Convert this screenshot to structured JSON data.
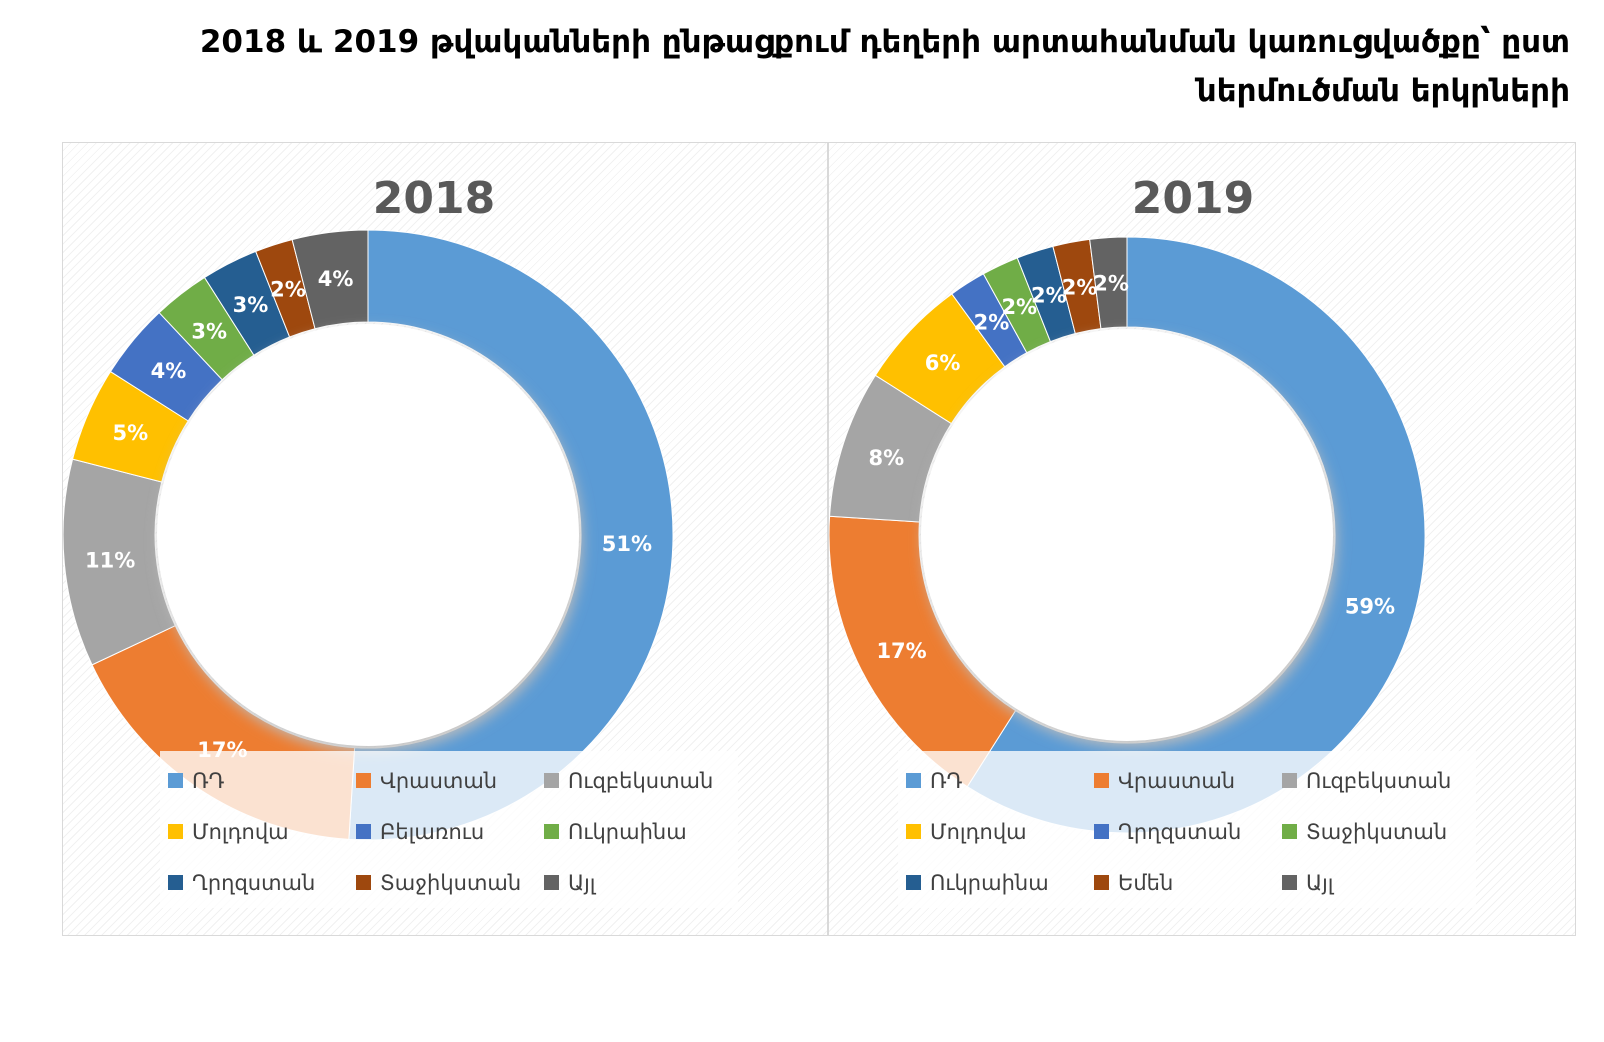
{
  "page": {
    "title_line1": "2018 և 2019 թվականների ընթացքում դեղերի արտահանման կառուցվածքը՝ ըստ",
    "title_line2": "ներմուծման երկրների"
  },
  "chart_data": [
    {
      "type": "pie",
      "donut": true,
      "title": "2018",
      "legend_position": "bottom",
      "categories": [
        "ՌԴ",
        "Վրաստան",
        "Ուզբեկստան",
        "Մոլդովա",
        "Բելառուս",
        "Ուկրաինա",
        "Ղրղզստան",
        "Տաջիկստան",
        "Այլ"
      ],
      "values": [
        51,
        17,
        11,
        5,
        4,
        3,
        3,
        2,
        4
      ],
      "labels": [
        "51%",
        "17%",
        "11%",
        "5%",
        "4%",
        "3%",
        "3%",
        "2%",
        "4%"
      ],
      "colors": [
        "#5B9BD5",
        "#ED7D31",
        "#A5A5A5",
        "#FFC000",
        "#4472C4",
        "#70AD47",
        "#255E91",
        "#9E480E",
        "#636363"
      ]
    },
    {
      "type": "pie",
      "donut": true,
      "title": "2019",
      "legend_position": "bottom",
      "categories": [
        "ՌԴ",
        "Վրաստան",
        "Ուզբեկստան",
        "Մոլդովա",
        "Ղրղզստան",
        "Տաջիկստան",
        "Ուկրաինա",
        "Եմեն",
        "Այլ"
      ],
      "values": [
        59,
        17,
        8,
        6,
        2,
        2,
        2,
        2,
        2
      ],
      "labels": [
        "59%",
        "17%",
        "8%",
        "6%",
        "2%",
        "2%",
        "2%",
        "2%",
        "2%"
      ],
      "colors": [
        "#5B9BD5",
        "#ED7D31",
        "#A5A5A5",
        "#FFC000",
        "#4472C4",
        "#70AD47",
        "#255E91",
        "#9E480E",
        "#636363"
      ]
    }
  ]
}
